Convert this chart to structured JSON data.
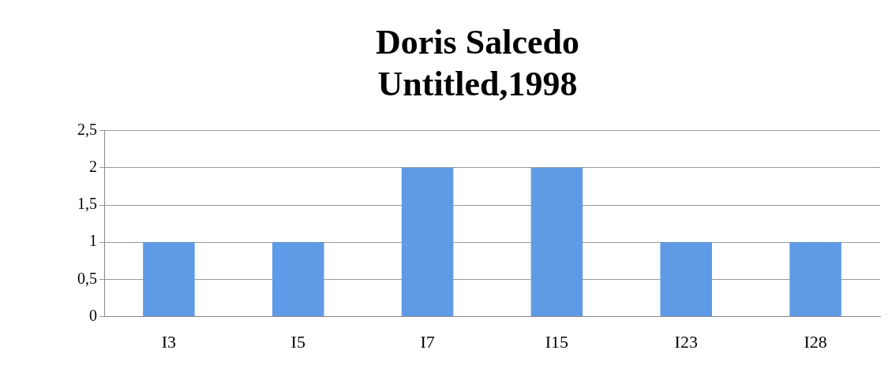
{
  "chart_data": {
    "type": "bar",
    "title": "Doris Salcedo\nUntitled,1998",
    "categories": [
      "I3",
      "I5",
      "I7",
      "I15",
      "I23",
      "I28"
    ],
    "values": [
      1,
      1,
      2,
      2,
      1,
      1
    ],
    "color": "#5f9ae6",
    "ylim": [
      0,
      2.5
    ],
    "yticks": [
      0,
      {
        "value": 0.5,
        "label": "0,5"
      },
      1,
      {
        "value": 1.5,
        "label": "1,5"
      },
      2,
      {
        "value": 2.5,
        "label": "2,5"
      }
    ],
    "grid": "y",
    "legend": false
  }
}
